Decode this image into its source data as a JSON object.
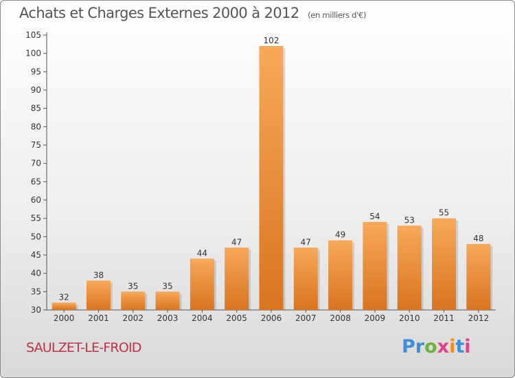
{
  "header": {
    "title": "Achats et Charges Externes 2000 à 2012",
    "subtitle": "(en milliers d'€)"
  },
  "footer": {
    "commune": "SAULZET-LE-FROID",
    "logo": [
      "Pr",
      "o",
      "x",
      "i",
      "t",
      "i"
    ]
  },
  "colors": {
    "bar_light": "#f7a95a",
    "bar_dark": "#d9741f",
    "commune_text": "#c0304a"
  },
  "chart_data": {
    "type": "bar",
    "title": "Achats et Charges Externes 2000 à 2012",
    "subtitle": "(en milliers d'€)",
    "categories": [
      "2000",
      "2001",
      "2002",
      "2003",
      "2004",
      "2005",
      "2006",
      "2007",
      "2008",
      "2009",
      "2010",
      "2011",
      "2012"
    ],
    "values": [
      32,
      38,
      35,
      35,
      44,
      47,
      102,
      47,
      49,
      54,
      53,
      55,
      48
    ],
    "ylim": [
      30,
      105
    ],
    "yticks": [
      30,
      35,
      40,
      45,
      50,
      55,
      60,
      65,
      70,
      75,
      80,
      85,
      90,
      95,
      100,
      105
    ],
    "xlabel": "",
    "ylabel": "",
    "grid": false,
    "data_labels": true
  }
}
